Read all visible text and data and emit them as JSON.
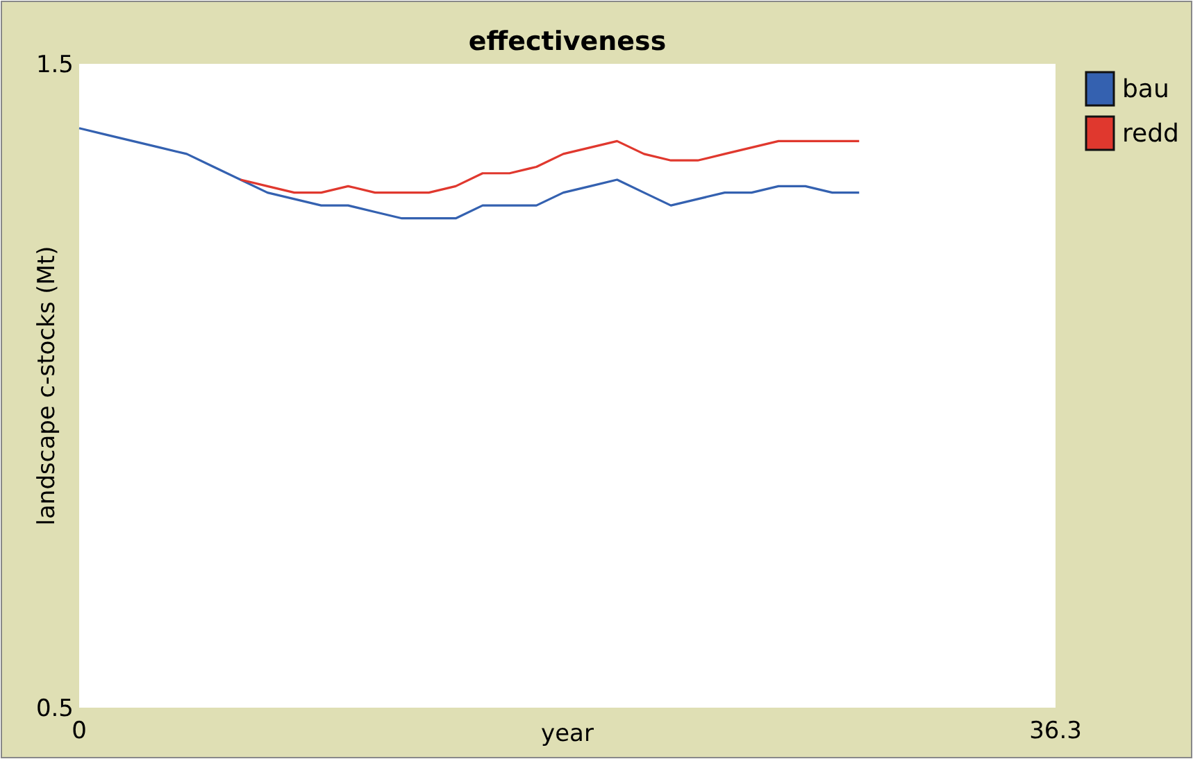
{
  "chart_data": {
    "type": "line",
    "title": "effectiveness",
    "xlabel": "year",
    "ylabel": "landscape c-stocks (Mt)",
    "xlim": [
      0,
      36.3
    ],
    "xticks": [
      0,
      36.3
    ],
    "ylim": [
      0.5,
      1.5
    ],
    "yticks": [
      0.5,
      1.5
    ],
    "grid": false,
    "legend": "top right",
    "series": [
      {
        "name": "bau",
        "color": "#3461b0",
        "x": [
          0,
          1,
          2,
          3,
          4,
          5,
          6,
          7,
          8,
          9,
          10,
          11,
          12,
          13,
          14,
          15,
          16,
          17,
          18,
          19,
          20,
          21,
          22,
          23,
          24,
          25,
          26,
          27,
          28,
          29
        ],
        "values": [
          1.4,
          1.39,
          1.38,
          1.37,
          1.36,
          1.34,
          1.32,
          1.3,
          1.29,
          1.28,
          1.28,
          1.27,
          1.26,
          1.26,
          1.26,
          1.28,
          1.28,
          1.28,
          1.3,
          1.31,
          1.32,
          1.3,
          1.28,
          1.29,
          1.3,
          1.3,
          1.31,
          1.31,
          1.3,
          1.3
        ]
      },
      {
        "name": "redd",
        "color": "#e0382e",
        "x": [
          6,
          7,
          8,
          9,
          10,
          11,
          12,
          13,
          14,
          15,
          16,
          17,
          18,
          19,
          20,
          21,
          22,
          23,
          24,
          25,
          26,
          27,
          28,
          29
        ],
        "values": [
          1.32,
          1.31,
          1.3,
          1.3,
          1.31,
          1.3,
          1.3,
          1.3,
          1.31,
          1.33,
          1.33,
          1.34,
          1.36,
          1.37,
          1.38,
          1.36,
          1.35,
          1.35,
          1.36,
          1.37,
          1.38,
          1.38,
          1.38,
          1.38
        ]
      }
    ]
  }
}
